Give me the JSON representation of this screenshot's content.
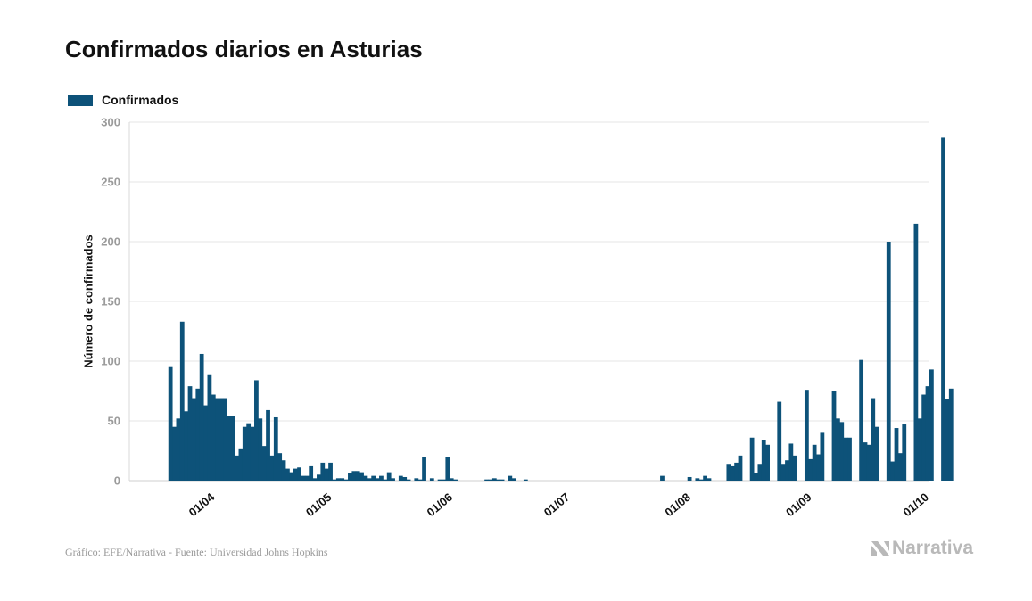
{
  "page": {
    "title": "Confirmados diarios en Asturias",
    "source": "Gráfico: EFE/Narrativa - Fuente: Universidad Johns Hopkins",
    "logo_text": "Narrativa"
  },
  "colors": {
    "bar": "#0d5279",
    "axis_tick_text": "#9b9b9b",
    "grid": "#e6e6e6"
  },
  "chart_data": {
    "type": "bar",
    "title": "Confirmados diarios en Asturias",
    "ylabel": "Número de confirmados",
    "xlabel": "",
    "ylim": [
      0,
      300
    ],
    "y_ticks": [
      0,
      50,
      100,
      150,
      200,
      250,
      300
    ],
    "x_ticks": [
      "01/04",
      "01/05",
      "01/06",
      "01/07",
      "01/08",
      "01/09",
      "01/10"
    ],
    "x_tick_dates": [
      "2020-04-01",
      "2020-05-01",
      "2020-06-01",
      "2020-07-01",
      "2020-08-01",
      "2020-09-01",
      "2020-10-01"
    ],
    "x_range": [
      "2020-03-10",
      "2020-10-01"
    ],
    "grid": true,
    "legend_position": "top-left",
    "series": [
      {
        "name": "Confirmados",
        "start_date": "2020-03-20",
        "values": [
          95,
          45,
          52,
          133,
          58,
          79,
          69,
          77,
          106,
          63,
          89,
          72,
          69,
          69,
          69,
          54,
          54,
          21,
          27,
          45,
          48,
          45,
          84,
          52,
          29,
          59,
          21,
          53,
          23,
          17,
          10,
          7,
          10,
          11,
          4,
          4,
          12,
          2,
          5,
          15,
          10,
          15,
          1,
          2,
          2,
          1,
          6,
          8,
          8,
          7,
          4,
          2,
          4,
          2,
          4,
          1,
          7,
          2,
          0,
          4,
          3,
          1,
          0,
          2,
          1,
          20,
          0,
          2,
          0,
          1,
          1,
          20,
          2,
          1,
          0,
          0,
          0,
          0,
          0,
          0,
          0,
          1,
          1,
          2,
          1,
          1,
          0,
          4,
          2,
          0,
          0,
          1,
          0,
          0,
          0,
          0,
          0,
          0,
          0,
          0,
          0,
          0,
          0,
          0,
          0,
          0,
          0,
          0,
          0,
          0,
          0,
          0,
          0,
          0,
          0,
          0,
          0,
          0,
          0,
          0,
          0,
          0,
          0,
          0,
          0,
          0,
          4,
          0,
          0,
          0,
          0,
          0,
          0,
          3,
          0,
          2,
          1,
          4,
          2,
          0,
          0,
          0,
          0,
          14,
          12,
          15,
          21,
          0,
          0,
          36,
          6,
          14,
          34,
          30,
          0,
          0,
          66,
          14,
          17,
          31,
          21,
          0,
          0,
          76,
          18,
          30,
          22,
          40,
          0,
          0,
          75,
          52,
          49,
          36,
          36,
          0,
          0,
          101,
          32,
          30,
          69,
          45,
          0,
          0,
          200,
          16,
          44,
          23,
          47,
          0,
          0,
          215,
          52,
          72,
          79,
          93,
          0,
          0,
          287,
          68,
          77
        ]
      }
    ]
  }
}
